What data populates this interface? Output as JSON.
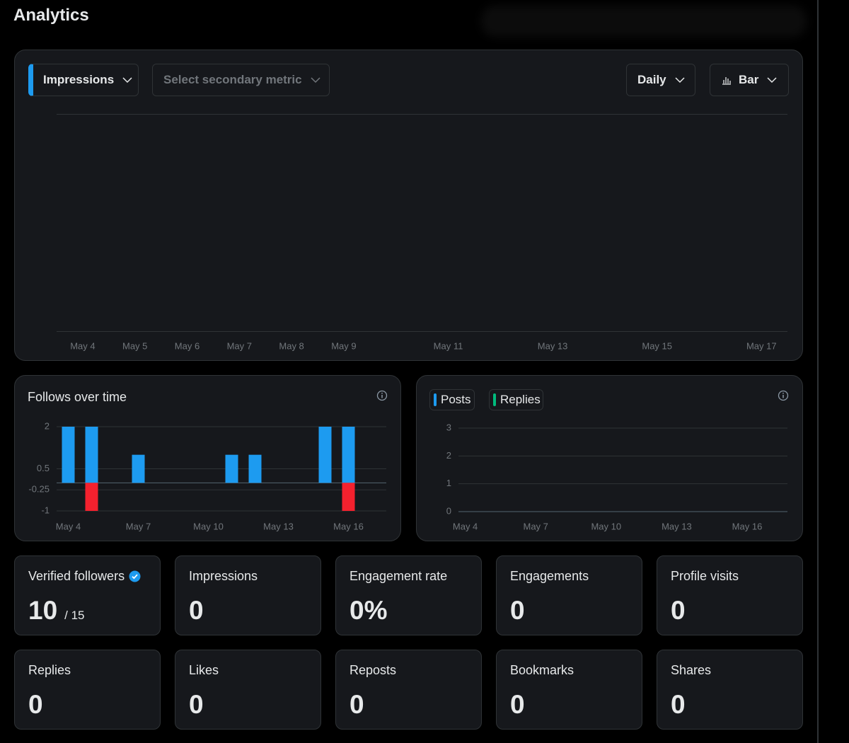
{
  "header": {
    "title": "Analytics"
  },
  "main_chart": {
    "type": "bar",
    "primary_metric": "Impressions",
    "secondary_metric": "Select secondary metric",
    "interval": "Daily",
    "chart_type": "Bar",
    "categories": [
      "May 4",
      "May 5",
      "May 6",
      "May 7",
      "May 8",
      "May 9",
      null,
      "May 11",
      null,
      "May 13",
      null,
      "May 15",
      null,
      "May 17"
    ]
  },
  "follows_chart": {
    "type": "bar",
    "title": "Follows over time",
    "categories": [
      "May 4",
      null,
      null,
      "May 7",
      null,
      null,
      "May 10",
      null,
      null,
      "May 13",
      null,
      null,
      "May 16",
      null
    ],
    "series": [
      {
        "color": "#1d9bf0",
        "values": [
          2,
          2,
          0,
          1,
          0,
          0,
          0,
          1,
          1,
          0,
          0,
          2,
          2,
          0
        ]
      },
      {
        "color": "#f4212e",
        "values": [
          0,
          -1,
          0,
          0,
          0,
          0,
          0,
          0,
          0,
          0,
          0,
          0,
          -1,
          0
        ]
      }
    ],
    "ylim": [
      -1,
      2
    ],
    "yticks": [
      -1,
      -0.25,
      0.5,
      2
    ],
    "grid": true
  },
  "activity_chart": {
    "type": "bar",
    "categories": [
      "May 4",
      null,
      null,
      "May 7",
      null,
      null,
      "May 10",
      null,
      null,
      "May 13",
      null,
      null,
      "May 16",
      null
    ],
    "series": [
      {
        "name": "Posts",
        "color": "#1d9bf0",
        "values": [
          0,
          0,
          0,
          0,
          0,
          0,
          0,
          0,
          0,
          0,
          0,
          0,
          0,
          0
        ]
      },
      {
        "name": "Replies",
        "color": "#00ba7c",
        "values": [
          0,
          0,
          0,
          0,
          0,
          0,
          0,
          0,
          0,
          0,
          0,
          0,
          0,
          0
        ]
      }
    ],
    "ylim": [
      0,
      3
    ],
    "yticks": [
      0,
      1,
      2,
      3
    ],
    "grid": true
  },
  "stats": [
    {
      "label": "Verified followers",
      "value": 10,
      "total": "/ 15"
    },
    {
      "label": "Impressions",
      "value": 0
    },
    {
      "label": "Engagement rate",
      "value": "0%"
    },
    {
      "label": "Engagements",
      "value": 0
    },
    {
      "label": "Profile visits",
      "value": 0
    },
    {
      "label": "Replies",
      "value": 0
    },
    {
      "label": "Likes",
      "value": 0
    },
    {
      "label": "Reposts",
      "value": 0
    },
    {
      "label": "Bookmarks",
      "value": 0
    },
    {
      "label": "Shares",
      "value": 0
    }
  ]
}
